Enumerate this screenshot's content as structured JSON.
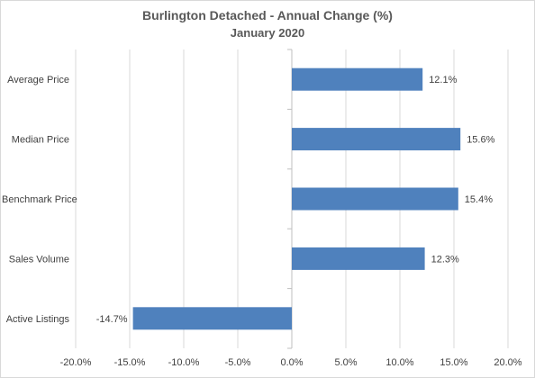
{
  "chart_data": {
    "type": "bar",
    "orientation": "horizontal",
    "title": "Burlington Detached - Annual Change (%)",
    "subtitle": "January 2020",
    "categories": [
      "Average Price",
      "Median Price",
      "Benchmark Price",
      "Sales Volume",
      "Active Listings"
    ],
    "values": [
      12.1,
      15.6,
      15.4,
      12.3,
      -14.7
    ],
    "data_labels": [
      "12.1%",
      "15.6%",
      "15.4%",
      "12.3%",
      "-14.7%"
    ],
    "xlim": [
      -20,
      20
    ],
    "x_ticks": [
      -20,
      -15,
      -10,
      -5,
      0,
      5,
      10,
      15,
      20
    ],
    "x_tick_labels": [
      "-20.0%",
      "-15.0%",
      "-10.0%",
      "-5.0%",
      "0.0%",
      "5.0%",
      "10.0%",
      "15.0%",
      "20.0%"
    ],
    "grid": true,
    "legend": false,
    "bar_color": "#4f81bd",
    "xlabel": "",
    "ylabel": ""
  }
}
